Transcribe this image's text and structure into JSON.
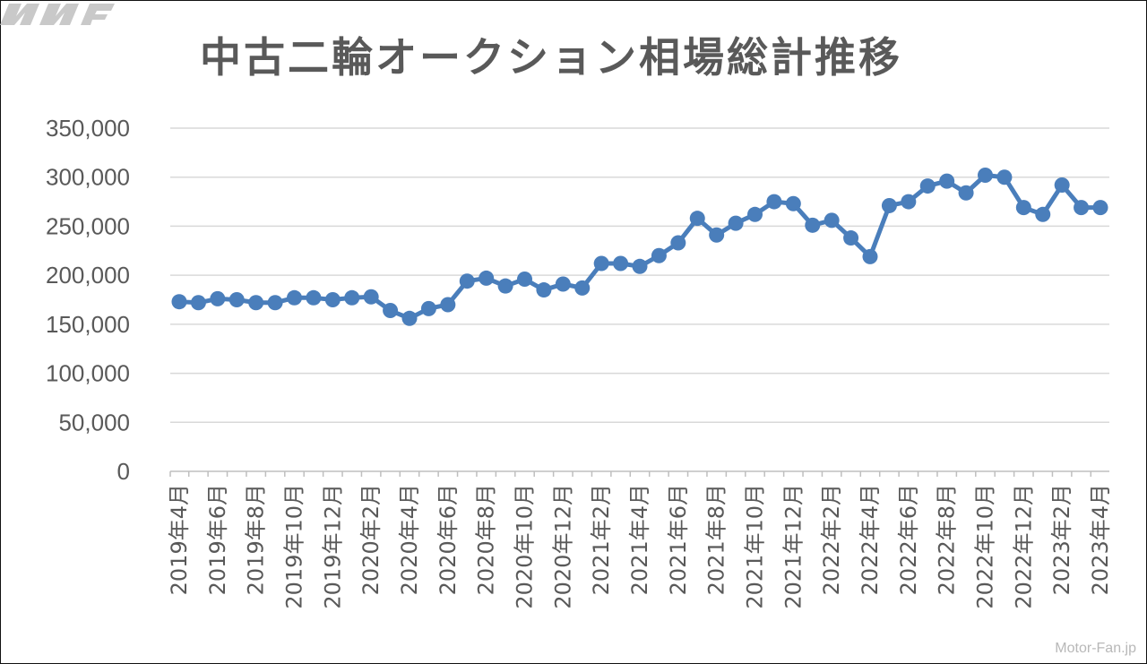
{
  "chart_data": {
    "type": "line",
    "title": "中古二輪オークション相場総計推移",
    "xlabel": "",
    "ylabel": "",
    "ylim": [
      0,
      350000
    ],
    "yticks": [
      "0",
      "50,000",
      "100,000",
      "150,000",
      "200,000",
      "250,000",
      "300,000",
      "350,000"
    ],
    "grid": true,
    "legend": "none",
    "color": "#4a7ebb",
    "x": [
      "2019年4月",
      "2019年5月",
      "2019年6月",
      "2019年7月",
      "2019年8月",
      "2019年9月",
      "2019年10月",
      "2019年11月",
      "2019年12月",
      "2020年1月",
      "2020年2月",
      "2020年3月",
      "2020年4月",
      "2020年5月",
      "2020年6月",
      "2020年7月",
      "2020年8月",
      "2020年9月",
      "2020年10月",
      "2020年11月",
      "2020年12月",
      "2021年1月",
      "2021年2月",
      "2021年3月",
      "2021年4月",
      "2021年5月",
      "2021年6月",
      "2021年7月",
      "2021年8月",
      "2021年9月",
      "2021年10月",
      "2021年11月",
      "2021年12月",
      "2022年1月",
      "2022年2月",
      "2022年3月",
      "2022年4月",
      "2022年5月",
      "2022年6月",
      "2022年7月",
      "2022年8月",
      "2022年9月",
      "2022年10月",
      "2022年11月",
      "2022年12月",
      "2023年1月",
      "2023年2月",
      "2023年3月",
      "2023年4月"
    ],
    "xtick_labels": [
      "2019年4月",
      "2019年6月",
      "2019年8月",
      "2019年10月",
      "2019年12月",
      "2020年2月",
      "2020年4月",
      "2020年6月",
      "2020年8月",
      "2020年10月",
      "2020年12月",
      "2021年2月",
      "2021年4月",
      "2021年6月",
      "2021年8月",
      "2021年10月",
      "2021年12月",
      "2022年2月",
      "2022年4月",
      "2022年6月",
      "2022年8月",
      "2022年10月",
      "2022年12月",
      "2023年2月",
      "2023年4月"
    ],
    "series": [
      {
        "values": [
          173000,
          172000,
          176000,
          175000,
          172000,
          172000,
          177000,
          177000,
          175000,
          177000,
          178000,
          164000,
          156000,
          166000,
          170000,
          194000,
          197000,
          189000,
          196000,
          185000,
          191000,
          187000,
          212000,
          212000,
          209000,
          220000,
          233000,
          258000,
          241000,
          253000,
          262000,
          275000,
          273000,
          251000,
          256000,
          238000,
          219000,
          271000,
          275000,
          291000,
          296000,
          284000,
          302000,
          300000,
          269000,
          262000,
          292000,
          269000,
          269000
        ]
      }
    ]
  },
  "watermark": {
    "text": "Motor-Fan.jp"
  }
}
